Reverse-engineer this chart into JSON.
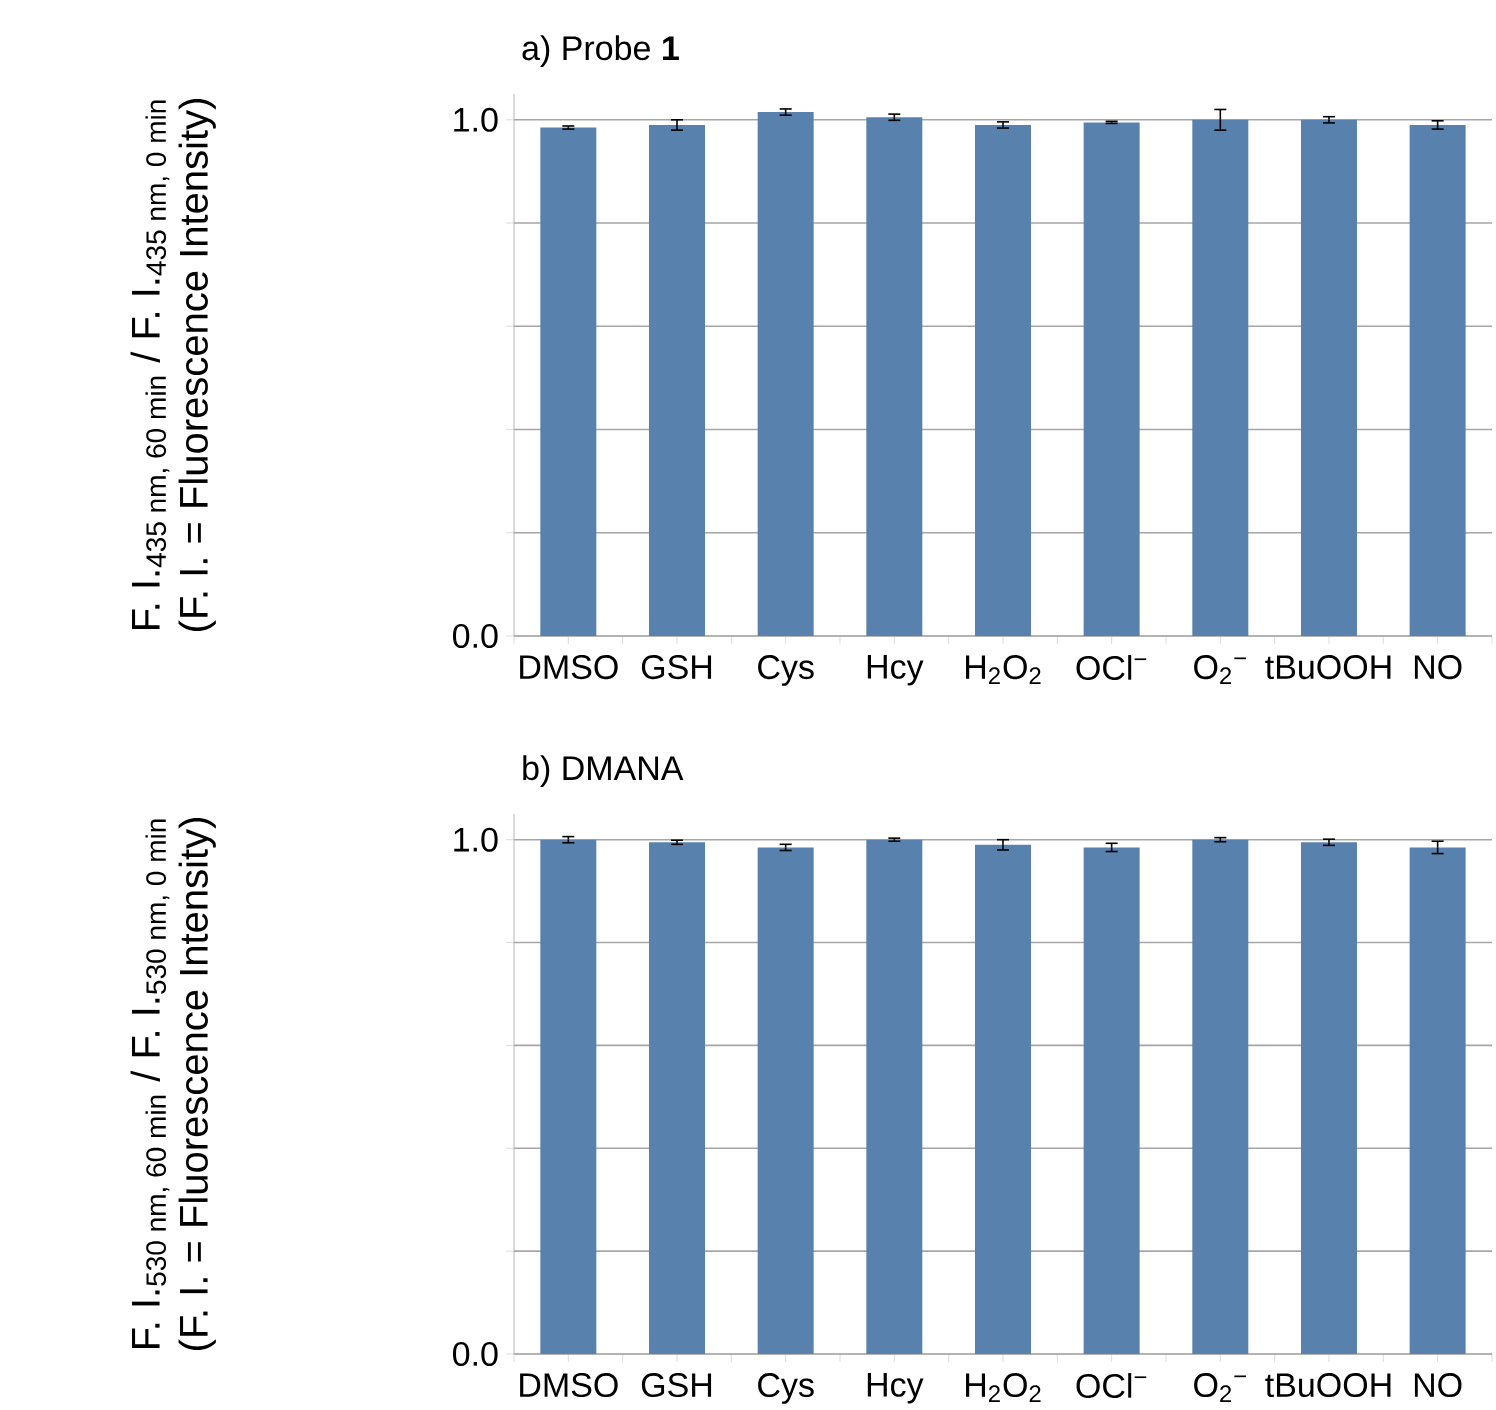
{
  "chart_data": [
    {
      "type": "bar",
      "title": "a) Probe **1**",
      "ylabel": "\\begin{array}{c}\\text{F. I.}_{\\text{435 nm, 60 min}}\\text{ / F. I.}_{\\text{435 nm, 0 min}}\\\\ \\text{(F. I. = Fluorescence Intensity)}\\end{array}",
      "categories": [
        "DMSO",
        "GSH",
        "Cys",
        "Hcy",
        "H$_{2}$O$_{2}$",
        "OCl$^{−}$",
        "O$_{2}$$^{−}$",
        "tBuOOH",
        "NO"
      ],
      "values": [
        0.985,
        0.99,
        1.015,
        1.005,
        0.99,
        0.995,
        1.0,
        1.0,
        0.99
      ],
      "errors": [
        0.003,
        0.01,
        0.006,
        0.006,
        0.006,
        0.002,
        0.02,
        0.006,
        0.008
      ],
      "color": "#5882ad",
      "ylim": [
        0,
        1.05
      ],
      "yticks": [
        {
          "value": 0,
          "label": "0.0"
        },
        {
          "value": 0.2,
          "label": null
        },
        {
          "value": 0.4,
          "label": null
        },
        {
          "value": 0.6,
          "label": null
        },
        {
          "value": 0.8,
          "label": null
        },
        {
          "value": 1,
          "label": "1.0"
        }
      ],
      "grid": "y"
    },
    {
      "type": "bar",
      "title": "b) DMANA",
      "ylabel": "\\begin{array}{c}\\text{F. I.}_{\\text{530 nm, 60 min}}\\text{ / F. I.}_{\\text{530 nm, 0 min}}\\\\ \\text{(F. I. = Fluorescence Intensity)}\\end{array}",
      "categories": [
        "DMSO",
        "GSH",
        "Cys",
        "Hcy",
        "H$_{2}$O$_{2}$",
        "OCl$^{−}$",
        "O$_{2}$$^{−}$",
        "tBuOOH",
        "NO"
      ],
      "values": [
        1.0,
        0.995,
        0.985,
        1.0,
        0.99,
        0.985,
        1.0,
        0.995,
        0.985
      ],
      "errors": [
        0.006,
        0.004,
        0.006,
        0.003,
        0.01,
        0.008,
        0.004,
        0.006,
        0.012
      ],
      "color": "#5882ad",
      "ylim": [
        0,
        1.05
      ],
      "yticks": [
        {
          "value": 0,
          "label": "0.0"
        },
        {
          "value": 0.2,
          "label": null
        },
        {
          "value": 0.4,
          "label": null
        },
        {
          "value": 0.6,
          "label": null
        },
        {
          "value": 0.8,
          "label": null
        },
        {
          "value": 1,
          "label": "1.0"
        }
      ],
      "grid": "y"
    }
  ]
}
